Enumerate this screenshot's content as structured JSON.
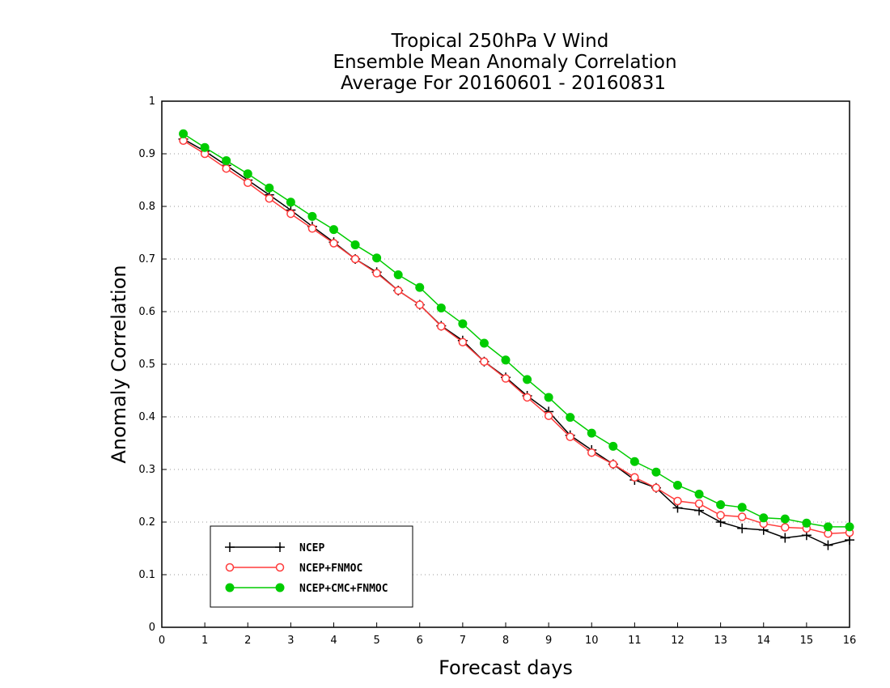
{
  "chart_data": {
    "type": "line",
    "title": [
      "Tropical 250hPa V Wind",
      "Ensemble Mean Anomaly Correlation",
      "Average For 20160601 - 20160831"
    ],
    "xlabel": "Forecast days",
    "ylabel": "Anomaly Correlation",
    "xlim": [
      0,
      16
    ],
    "ylim": [
      0,
      1
    ],
    "xticks": [
      "0",
      "1",
      "2",
      "3",
      "4",
      "5",
      "6",
      "7",
      "8",
      "9",
      "10",
      "11",
      "12",
      "13",
      "14",
      "15",
      "16"
    ],
    "yticks": [
      "0",
      "0.1",
      "0.2",
      "0.3",
      "0.4",
      "0.5",
      "0.6",
      "0.7",
      "0.8",
      "0.9",
      "1"
    ],
    "grid": "horizontal dotted",
    "legend_position": "bottom-left",
    "x": [
      0.5,
      1,
      1.5,
      2,
      2.5,
      3,
      3.5,
      4,
      4.5,
      5,
      5.5,
      6,
      6.5,
      7,
      7.5,
      8,
      8.5,
      9,
      9.5,
      10,
      10.5,
      11,
      11.5,
      12,
      12.5,
      13,
      13.5,
      14,
      14.5,
      15,
      15.5,
      16
    ],
    "series": [
      {
        "name": "NCEP",
        "color": "#000000",
        "marker": "plus",
        "values": [
          0.928,
          0.905,
          0.878,
          0.85,
          0.822,
          0.793,
          0.762,
          0.732,
          0.7,
          0.675,
          0.64,
          0.613,
          0.573,
          0.545,
          0.505,
          0.475,
          0.44,
          0.41,
          0.365,
          0.337,
          0.31,
          0.28,
          0.265,
          0.227,
          0.222,
          0.2,
          0.188,
          0.185,
          0.17,
          0.175,
          0.156,
          0.166
        ]
      },
      {
        "name": "NCEP+FNMOC",
        "color": "#ff3b3b",
        "marker": "open-circle",
        "values": [
          0.925,
          0.9,
          0.872,
          0.845,
          0.815,
          0.786,
          0.758,
          0.73,
          0.7,
          0.673,
          0.64,
          0.613,
          0.572,
          0.542,
          0.505,
          0.473,
          0.437,
          0.402,
          0.362,
          0.332,
          0.31,
          0.285,
          0.265,
          0.24,
          0.235,
          0.213,
          0.21,
          0.197,
          0.19,
          0.188,
          0.178,
          0.18
        ]
      },
      {
        "name": "NCEP+CMC+FNMOC",
        "color": "#00cc00",
        "marker": "filled-circle",
        "values": [
          0.938,
          0.912,
          0.887,
          0.862,
          0.835,
          0.808,
          0.781,
          0.756,
          0.727,
          0.702,
          0.67,
          0.646,
          0.607,
          0.577,
          0.54,
          0.508,
          0.471,
          0.437,
          0.399,
          0.369,
          0.344,
          0.315,
          0.295,
          0.27,
          0.253,
          0.233,
          0.228,
          0.208,
          0.206,
          0.198,
          0.191,
          0.191
        ]
      }
    ]
  }
}
